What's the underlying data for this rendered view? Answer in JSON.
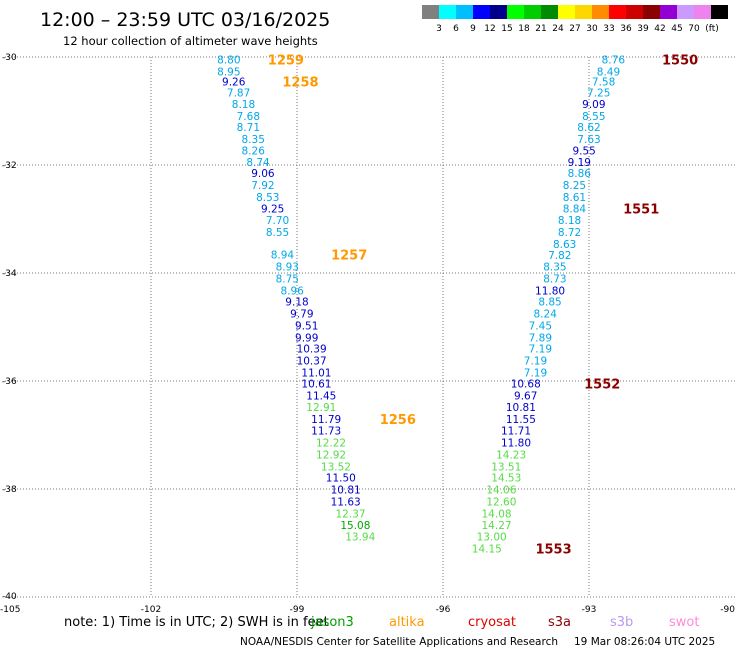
{
  "chart_data": {
    "type": "scatter",
    "title": "12:00 – 23:59 UTC 03/16/2025",
    "subtitle": "12 hour collection of altimeter wave heights",
    "xlim": [
      -105,
      -90
    ],
    "ylim": [
      -40,
      -30
    ],
    "x_ticks": [
      -105,
      -102,
      -99,
      -96,
      -93,
      -90
    ],
    "y_ticks": [
      -30,
      -32,
      -34,
      -36,
      -38,
      -40
    ],
    "grid": true,
    "colorbar": {
      "unit": "(ft)",
      "labels": [
        "3",
        "6",
        "9",
        "12",
        "15",
        "18",
        "21",
        "24",
        "27",
        "30",
        "33",
        "36",
        "39",
        "42",
        "45",
        "70"
      ],
      "colors": [
        "#808080",
        "#00ffff",
        "#00bfff",
        "#0000ff",
        "#00008b",
        "#00ff00",
        "#00cd00",
        "#008b00",
        "#ffff00",
        "#ffd700",
        "#ff8c00",
        "#ff0000",
        "#cd0000",
        "#8b0000",
        "#9400d3",
        "#cc99ff",
        "#ee82ee",
        "#000000"
      ]
    },
    "series": [
      {
        "name": "jason3",
        "color": "#00a000",
        "points": []
      },
      {
        "name": "altika",
        "color": "#ff9900",
        "points": [
          {
            "lon": -100.4,
            "lat": -30.05,
            "v": 8.8
          },
          {
            "lon": -100.4,
            "lat": -30.27,
            "v": 8.95
          },
          {
            "lon": -100.3,
            "lat": -30.45,
            "v": 9.26
          },
          {
            "lon": -100.2,
            "lat": -30.66,
            "v": 7.87
          },
          {
            "lon": -100.1,
            "lat": -30.87,
            "v": 8.18
          },
          {
            "lon": -100.0,
            "lat": -31.09,
            "v": 7.68
          },
          {
            "lon": -100.0,
            "lat": -31.3,
            "v": 8.71
          },
          {
            "lon": -99.9,
            "lat": -31.52,
            "v": 8.35
          },
          {
            "lon": -99.9,
            "lat": -31.73,
            "v": 8.26
          },
          {
            "lon": -99.8,
            "lat": -31.94,
            "v": 8.74
          },
          {
            "lon": -99.7,
            "lat": -32.15,
            "v": 9.06
          },
          {
            "lon": -99.7,
            "lat": -32.37,
            "v": 7.92
          },
          {
            "lon": -99.6,
            "lat": -32.59,
            "v": 8.53
          },
          {
            "lon": -99.5,
            "lat": -32.81,
            "v": 9.25
          },
          {
            "lon": -99.4,
            "lat": -33.02,
            "v": 7.7
          },
          {
            "lon": -99.4,
            "lat": -33.24,
            "v": 8.55
          },
          {
            "lon": -99.3,
            "lat": -33.66,
            "v": 8.94
          },
          {
            "lon": -99.2,
            "lat": -33.88,
            "v": 8.93
          },
          {
            "lon": -99.2,
            "lat": -34.1,
            "v": 8.75
          },
          {
            "lon": -99.1,
            "lat": -34.32,
            "v": 8.96
          },
          {
            "lon": -99.0,
            "lat": -34.53,
            "v": 9.18
          },
          {
            "lon": -98.9,
            "lat": -34.75,
            "v": 9.79
          },
          {
            "lon": -98.8,
            "lat": -34.97,
            "v": 9.51
          },
          {
            "lon": -98.8,
            "lat": -35.19,
            "v": 9.99
          },
          {
            "lon": -98.7,
            "lat": -35.4,
            "v": 10.39
          },
          {
            "lon": -98.7,
            "lat": -35.62,
            "v": 10.37
          },
          {
            "lon": -98.6,
            "lat": -35.84,
            "v": 11.01
          },
          {
            "lon": -98.6,
            "lat": -36.05,
            "v": 10.61
          },
          {
            "lon": -98.5,
            "lat": -36.27,
            "v": 11.45
          },
          {
            "lon": -98.5,
            "lat": -36.48,
            "v": 12.91
          },
          {
            "lon": -98.4,
            "lat": -36.7,
            "v": 11.79
          },
          {
            "lon": -98.4,
            "lat": -36.92,
            "v": 11.73
          },
          {
            "lon": -98.3,
            "lat": -37.14,
            "v": 12.22
          },
          {
            "lon": -98.3,
            "lat": -37.36,
            "v": 12.92
          },
          {
            "lon": -98.2,
            "lat": -37.58,
            "v": 13.52
          },
          {
            "lon": -98.1,
            "lat": -37.79,
            "v": 11.5
          },
          {
            "lon": -98.0,
            "lat": -38.01,
            "v": 10.81
          },
          {
            "lon": -98.0,
            "lat": -38.23,
            "v": 11.63
          },
          {
            "lon": -97.9,
            "lat": -38.45,
            "v": 12.37
          },
          {
            "lon": -97.8,
            "lat": -38.67,
            "v": 15.08
          },
          {
            "lon": -97.7,
            "lat": -38.88,
            "v": 13.94
          }
        ]
      },
      {
        "name": "cryosat",
        "color": "#e00000",
        "points": []
      },
      {
        "name": "s3a",
        "color": "#8b0000",
        "points": [
          {
            "lon": -92.5,
            "lat": -30.05,
            "v": 8.76
          },
          {
            "lon": -92.6,
            "lat": -30.27,
            "v": 8.49
          },
          {
            "lon": -92.7,
            "lat": -30.45,
            "v": 7.58
          },
          {
            "lon": -92.8,
            "lat": -30.66,
            "v": 7.25
          },
          {
            "lon": -92.9,
            "lat": -30.87,
            "v": 9.09
          },
          {
            "lon": -92.9,
            "lat": -31.09,
            "v": 8.55
          },
          {
            "lon": -93.0,
            "lat": -31.3,
            "v": 8.62
          },
          {
            "lon": -93.0,
            "lat": -31.52,
            "v": 7.63
          },
          {
            "lon": -93.1,
            "lat": -31.73,
            "v": 9.55
          },
          {
            "lon": -93.2,
            "lat": -31.94,
            "v": 9.19
          },
          {
            "lon": -93.2,
            "lat": -32.15,
            "v": 8.86
          },
          {
            "lon": -93.3,
            "lat": -32.37,
            "v": 8.25
          },
          {
            "lon": -93.3,
            "lat": -32.59,
            "v": 8.61
          },
          {
            "lon": -93.3,
            "lat": -32.81,
            "v": 8.84
          },
          {
            "lon": -93.4,
            "lat": -33.02,
            "v": 8.18
          },
          {
            "lon": -93.4,
            "lat": -33.24,
            "v": 8.72
          },
          {
            "lon": -93.5,
            "lat": -33.46,
            "v": 8.63
          },
          {
            "lon": -93.6,
            "lat": -33.67,
            "v": 7.82
          },
          {
            "lon": -93.7,
            "lat": -33.88,
            "v": 8.35
          },
          {
            "lon": -93.7,
            "lat": -34.1,
            "v": 8.73
          },
          {
            "lon": -93.8,
            "lat": -34.32,
            "v": 11.8
          },
          {
            "lon": -93.8,
            "lat": -34.53,
            "v": 8.85
          },
          {
            "lon": -93.9,
            "lat": -34.75,
            "v": 8.24
          },
          {
            "lon": -94.0,
            "lat": -34.97,
            "v": 7.45
          },
          {
            "lon": -94.0,
            "lat": -35.19,
            "v": 7.89
          },
          {
            "lon": -94.0,
            "lat": -35.4,
            "v": 7.19
          },
          {
            "lon": -94.1,
            "lat": -35.62,
            "v": 7.19
          },
          {
            "lon": -94.1,
            "lat": -35.84,
            "v": 7.19
          },
          {
            "lon": -94.3,
            "lat": -36.05,
            "v": 10.68
          },
          {
            "lon": -94.3,
            "lat": -36.27,
            "v": 9.67
          },
          {
            "lon": -94.4,
            "lat": -36.48,
            "v": 10.81
          },
          {
            "lon": -94.4,
            "lat": -36.7,
            "v": 11.55
          },
          {
            "lon": -94.5,
            "lat": -36.92,
            "v": 11.71
          },
          {
            "lon": -94.5,
            "lat": -37.14,
            "v": 11.8
          },
          {
            "lon": -94.6,
            "lat": -37.36,
            "v": 14.23
          },
          {
            "lon": -94.7,
            "lat": -37.58,
            "v": 13.51
          },
          {
            "lon": -94.7,
            "lat": -37.79,
            "v": 14.53
          },
          {
            "lon": -94.8,
            "lat": -38.01,
            "v": 14.06
          },
          {
            "lon": -94.8,
            "lat": -38.23,
            "v": 12.6
          },
          {
            "lon": -94.9,
            "lat": -38.45,
            "v": 14.08
          },
          {
            "lon": -94.9,
            "lat": -38.67,
            "v": 14.27
          },
          {
            "lon": -95.0,
            "lat": -38.88,
            "v": 13.0
          },
          {
            "lon": -95.1,
            "lat": -39.1,
            "v": 14.15
          }
        ]
      },
      {
        "name": "s3b",
        "color": "#bb99ee",
        "points": []
      },
      {
        "name": "swot",
        "color": "#ff88dd",
        "points": []
      }
    ],
    "pass_labels": [
      {
        "text": "1259",
        "color": "#ff9900",
        "lon": -99.6,
        "lat": -30.05
      },
      {
        "text": "1258",
        "color": "#ff9900",
        "lon": -99.3,
        "lat": -30.45
      },
      {
        "text": "1257",
        "color": "#ff9900",
        "lon": -98.3,
        "lat": -33.66
      },
      {
        "text": "1256",
        "color": "#ff9900",
        "lon": -97.3,
        "lat": -36.7
      },
      {
        "text": "1550",
        "color": "#8b0000",
        "lon": -91.5,
        "lat": -30.05
      },
      {
        "text": "1551",
        "color": "#8b0000",
        "lon": -92.3,
        "lat": -32.81
      },
      {
        "text": "1552",
        "color": "#8b0000",
        "lon": -93.1,
        "lat": -36.05
      },
      {
        "text": "1553",
        "color": "#8b0000",
        "lon": -94.1,
        "lat": -39.1
      }
    ]
  },
  "footer": {
    "note": "note:  1) Time is in UTC; 2) SWH is in feet",
    "credit": "NOAA/NESDIS Center for Satellite Applications and Research",
    "timestamp": "19 Mar 08:26:04 UTC 2025"
  }
}
